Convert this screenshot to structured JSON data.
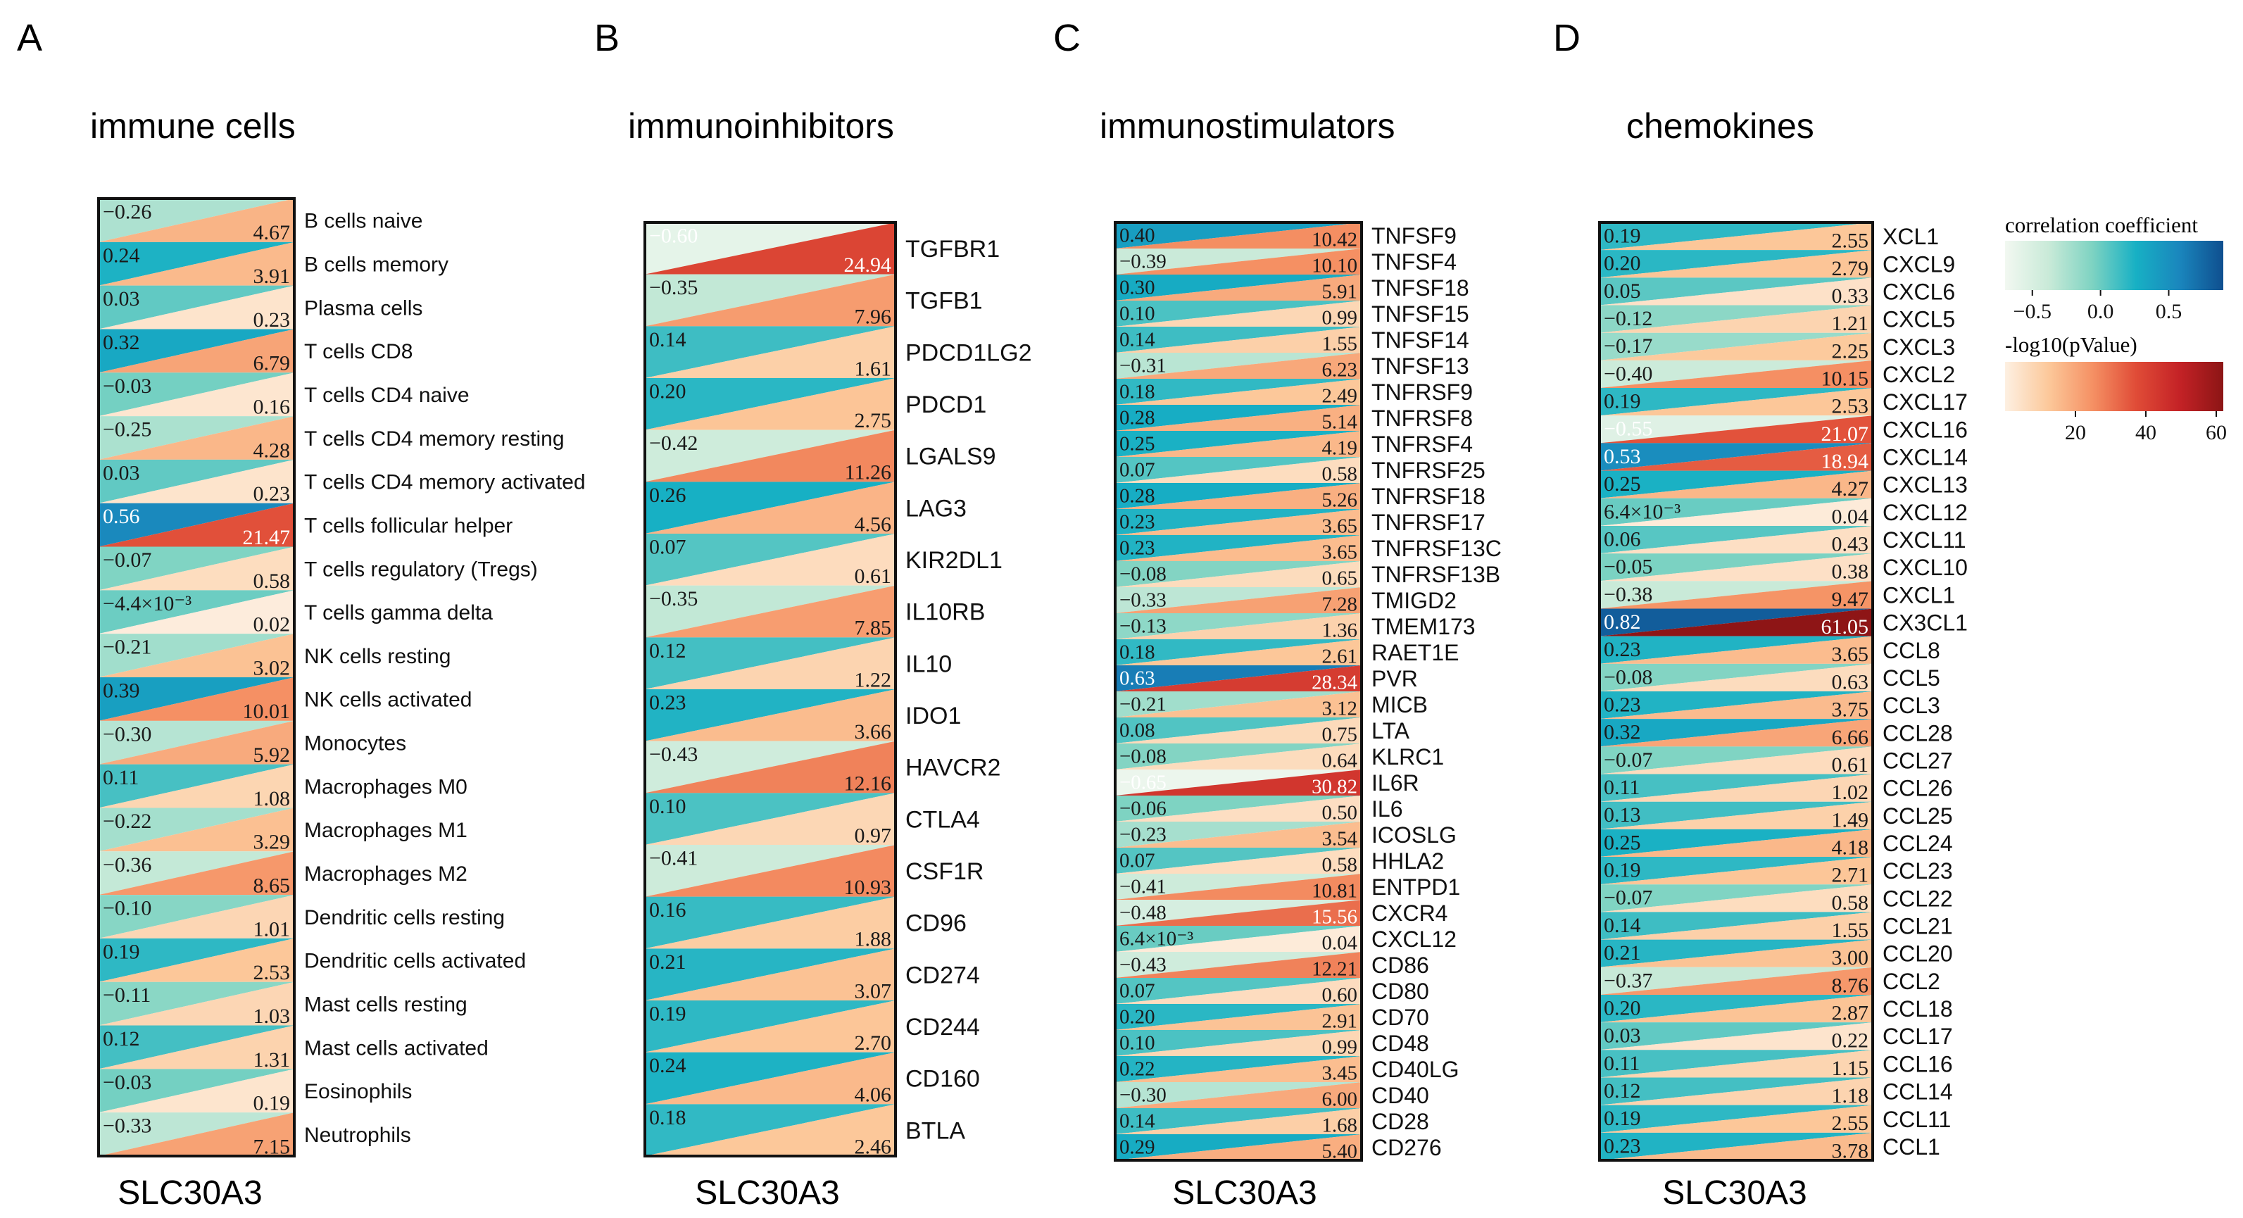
{
  "chart_data": [
    {
      "type": "heatmap",
      "panel_label": "A",
      "title": "immune cells",
      "xlabel": "SLC30A3",
      "rows": [
        {
          "name": "B cells naive",
          "cor": -0.26,
          "cor_label": "−0.26",
          "logp": 4.67,
          "logp_label": "4.67"
        },
        {
          "name": "B cells memory",
          "cor": 0.24,
          "cor_label": "0.24",
          "logp": 3.91,
          "logp_label": "3.91"
        },
        {
          "name": "Plasma cells",
          "cor": 0.03,
          "cor_label": "0.03",
          "logp": 0.23,
          "logp_label": "0.23"
        },
        {
          "name": "T cells CD8",
          "cor": 0.32,
          "cor_label": "0.32",
          "logp": 6.79,
          "logp_label": "6.79"
        },
        {
          "name": "T cells CD4 naive",
          "cor": -0.03,
          "cor_label": "−0.03",
          "logp": 0.16,
          "logp_label": "0.16"
        },
        {
          "name": "T cells CD4 memory resting",
          "cor": -0.25,
          "cor_label": "−0.25",
          "logp": 4.28,
          "logp_label": "4.28"
        },
        {
          "name": "T cells CD4 memory activated",
          "cor": 0.03,
          "cor_label": "0.03",
          "logp": 0.23,
          "logp_label": "0.23"
        },
        {
          "name": "T cells follicular helper",
          "cor": 0.56,
          "cor_label": "0.56",
          "logp": 21.47,
          "logp_label": "21.47"
        },
        {
          "name": "T cells regulatory (Tregs)",
          "cor": -0.07,
          "cor_label": "−0.07",
          "logp": 0.58,
          "logp_label": "0.58"
        },
        {
          "name": "T cells gamma delta",
          "cor": -0.0044,
          "cor_label": "−4.4×10⁻³",
          "logp": 0.02,
          "logp_label": "0.02"
        },
        {
          "name": "NK cells resting",
          "cor": -0.21,
          "cor_label": "−0.21",
          "logp": 3.02,
          "logp_label": "3.02"
        },
        {
          "name": "NK cells activated",
          "cor": 0.39,
          "cor_label": "0.39",
          "logp": 10.01,
          "logp_label": "10.01"
        },
        {
          "name": "Monocytes",
          "cor": -0.3,
          "cor_label": "−0.30",
          "logp": 5.92,
          "logp_label": "5.92"
        },
        {
          "name": "Macrophages M0",
          "cor": 0.11,
          "cor_label": "0.11",
          "logp": 1.08,
          "logp_label": "1.08"
        },
        {
          "name": "Macrophages M1",
          "cor": -0.22,
          "cor_label": "−0.22",
          "logp": 3.29,
          "logp_label": "3.29"
        },
        {
          "name": "Macrophages M2",
          "cor": -0.36,
          "cor_label": "−0.36",
          "logp": 8.65,
          "logp_label": "8.65"
        },
        {
          "name": "Dendritic cells resting",
          "cor": -0.1,
          "cor_label": "−0.10",
          "logp": 1.01,
          "logp_label": "1.01"
        },
        {
          "name": "Dendritic cells activated",
          "cor": 0.19,
          "cor_label": "0.19",
          "logp": 2.53,
          "logp_label": "2.53"
        },
        {
          "name": "Mast cells resting",
          "cor": -0.11,
          "cor_label": "−0.11",
          "logp": 1.03,
          "logp_label": "1.03"
        },
        {
          "name": "Mast cells activated",
          "cor": 0.12,
          "cor_label": "0.12",
          "logp": 1.31,
          "logp_label": "1.31"
        },
        {
          "name": "Eosinophils",
          "cor": -0.03,
          "cor_label": "−0.03",
          "logp": 0.19,
          "logp_label": "0.19"
        },
        {
          "name": "Neutrophils",
          "cor": -0.33,
          "cor_label": "−0.33",
          "logp": 7.15,
          "logp_label": "7.15"
        }
      ]
    },
    {
      "type": "heatmap",
      "panel_label": "B",
      "title": "immunoinhibitors",
      "xlabel": "SLC30A3",
      "rows": [
        {
          "name": "TGFBR1",
          "cor": -0.6,
          "cor_label": "−0.60",
          "logp": 24.94,
          "logp_label": "24.94"
        },
        {
          "name": "TGFB1",
          "cor": -0.35,
          "cor_label": "−0.35",
          "logp": 7.96,
          "logp_label": "7.96"
        },
        {
          "name": "PDCD1LG2",
          "cor": 0.14,
          "cor_label": "0.14",
          "logp": 1.61,
          "logp_label": "1.61"
        },
        {
          "name": "PDCD1",
          "cor": 0.2,
          "cor_label": "0.20",
          "logp": 2.75,
          "logp_label": "2.75"
        },
        {
          "name": "LGALS9",
          "cor": -0.42,
          "cor_label": "−0.42",
          "logp": 11.26,
          "logp_label": "11.26"
        },
        {
          "name": "LAG3",
          "cor": 0.26,
          "cor_label": "0.26",
          "logp": 4.56,
          "logp_label": "4.56"
        },
        {
          "name": "KIR2DL1",
          "cor": 0.07,
          "cor_label": "0.07",
          "logp": 0.61,
          "logp_label": "0.61"
        },
        {
          "name": "IL10RB",
          "cor": -0.35,
          "cor_label": "−0.35",
          "logp": 7.85,
          "logp_label": "7.85"
        },
        {
          "name": "IL10",
          "cor": 0.12,
          "cor_label": "0.12",
          "logp": 1.22,
          "logp_label": "1.22"
        },
        {
          "name": "IDO1",
          "cor": 0.23,
          "cor_label": "0.23",
          "logp": 3.66,
          "logp_label": "3.66"
        },
        {
          "name": "HAVCR2",
          "cor": -0.43,
          "cor_label": "−0.43",
          "logp": 12.16,
          "logp_label": "12.16"
        },
        {
          "name": "CTLA4",
          "cor": 0.1,
          "cor_label": "0.10",
          "logp": 0.97,
          "logp_label": "0.97"
        },
        {
          "name": "CSF1R",
          "cor": -0.41,
          "cor_label": "−0.41",
          "logp": 10.93,
          "logp_label": "10.93"
        },
        {
          "name": "CD96",
          "cor": 0.16,
          "cor_label": "0.16",
          "logp": 1.88,
          "logp_label": "1.88"
        },
        {
          "name": "CD274",
          "cor": 0.21,
          "cor_label": "0.21",
          "logp": 3.07,
          "logp_label": "3.07"
        },
        {
          "name": "CD244",
          "cor": 0.19,
          "cor_label": "0.19",
          "logp": 2.7,
          "logp_label": "2.70"
        },
        {
          "name": "CD160",
          "cor": 0.24,
          "cor_label": "0.24",
          "logp": 4.06,
          "logp_label": "4.06"
        },
        {
          "name": "BTLA",
          "cor": 0.18,
          "cor_label": "0.18",
          "logp": 2.46,
          "logp_label": "2.46"
        }
      ]
    },
    {
      "type": "heatmap",
      "panel_label": "C",
      "title": "immunostimulators",
      "xlabel": "SLC30A3",
      "rows": [
        {
          "name": "TNFSF9",
          "cor": 0.4,
          "cor_label": "0.40",
          "logp": 10.42,
          "logp_label": "10.42"
        },
        {
          "name": "TNFSF4",
          "cor": -0.39,
          "cor_label": "−0.39",
          "logp": 10.1,
          "logp_label": "10.10"
        },
        {
          "name": "TNFSF18",
          "cor": 0.3,
          "cor_label": "0.30",
          "logp": 5.91,
          "logp_label": "5.91"
        },
        {
          "name": "TNFSF15",
          "cor": 0.1,
          "cor_label": "0.10",
          "logp": 0.99,
          "logp_label": "0.99"
        },
        {
          "name": "TNFSF14",
          "cor": 0.14,
          "cor_label": "0.14",
          "logp": 1.55,
          "logp_label": "1.55"
        },
        {
          "name": "TNFSF13",
          "cor": -0.31,
          "cor_label": "−0.31",
          "logp": 6.23,
          "logp_label": "6.23"
        },
        {
          "name": "TNFRSF9",
          "cor": 0.18,
          "cor_label": "0.18",
          "logp": 2.49,
          "logp_label": "2.49"
        },
        {
          "name": "TNFRSF8",
          "cor": 0.28,
          "cor_label": "0.28",
          "logp": 5.14,
          "logp_label": "5.14"
        },
        {
          "name": "TNFRSF4",
          "cor": 0.25,
          "cor_label": "0.25",
          "logp": 4.19,
          "logp_label": "4.19"
        },
        {
          "name": "TNFRSF25",
          "cor": 0.07,
          "cor_label": "0.07",
          "logp": 0.58,
          "logp_label": "0.58"
        },
        {
          "name": "TNFRSF18",
          "cor": 0.28,
          "cor_label": "0.28",
          "logp": 5.26,
          "logp_label": "5.26"
        },
        {
          "name": "TNFRSF17",
          "cor": 0.23,
          "cor_label": "0.23",
          "logp": 3.65,
          "logp_label": "3.65"
        },
        {
          "name": "TNFRSF13C",
          "cor": 0.23,
          "cor_label": "0.23",
          "logp": 3.65,
          "logp_label": "3.65"
        },
        {
          "name": "TNFRSF13B",
          "cor": -0.08,
          "cor_label": "−0.08",
          "logp": 0.65,
          "logp_label": "0.65"
        },
        {
          "name": "TMIGD2",
          "cor": -0.33,
          "cor_label": "−0.33",
          "logp": 7.28,
          "logp_label": "7.28"
        },
        {
          "name": "TMEM173",
          "cor": -0.13,
          "cor_label": "−0.13",
          "logp": 1.36,
          "logp_label": "1.36"
        },
        {
          "name": "RAET1E",
          "cor": 0.18,
          "cor_label": "0.18",
          "logp": 2.61,
          "logp_label": "2.61"
        },
        {
          "name": "PVR",
          "cor": 0.63,
          "cor_label": "0.63",
          "logp": 28.34,
          "logp_label": "28.34"
        },
        {
          "name": "MICB",
          "cor": -0.21,
          "cor_label": "−0.21",
          "logp": 3.12,
          "logp_label": "3.12"
        },
        {
          "name": "LTA",
          "cor": 0.08,
          "cor_label": "0.08",
          "logp": 0.75,
          "logp_label": "0.75"
        },
        {
          "name": "KLRC1",
          "cor": -0.08,
          "cor_label": "−0.08",
          "logp": 0.64,
          "logp_label": "0.64"
        },
        {
          "name": "IL6R",
          "cor": -0.65,
          "cor_label": "−0.65",
          "logp": 30.82,
          "logp_label": "30.82"
        },
        {
          "name": "IL6",
          "cor": -0.06,
          "cor_label": "−0.06",
          "logp": 0.5,
          "logp_label": "0.50"
        },
        {
          "name": "ICOSLG",
          "cor": -0.23,
          "cor_label": "−0.23",
          "logp": 3.54,
          "logp_label": "3.54"
        },
        {
          "name": "HHLA2",
          "cor": 0.07,
          "cor_label": "0.07",
          "logp": 0.58,
          "logp_label": "0.58"
        },
        {
          "name": "ENTPD1",
          "cor": -0.41,
          "cor_label": "−0.41",
          "logp": 10.81,
          "logp_label": "10.81"
        },
        {
          "name": "CXCR4",
          "cor": -0.48,
          "cor_label": "−0.48",
          "logp": 15.56,
          "logp_label": "15.56"
        },
        {
          "name": "CXCL12",
          "cor": 0.0064,
          "cor_label": "6.4×10⁻³",
          "logp": 0.04,
          "logp_label": "0.04"
        },
        {
          "name": "CD86",
          "cor": -0.43,
          "cor_label": "−0.43",
          "logp": 12.21,
          "logp_label": "12.21"
        },
        {
          "name": "CD80",
          "cor": 0.07,
          "cor_label": "0.07",
          "logp": 0.6,
          "logp_label": "0.60"
        },
        {
          "name": "CD70",
          "cor": 0.2,
          "cor_label": "0.20",
          "logp": 2.91,
          "logp_label": "2.91"
        },
        {
          "name": "CD48",
          "cor": 0.1,
          "cor_label": "0.10",
          "logp": 0.99,
          "logp_label": "0.99"
        },
        {
          "name": "CD40LG",
          "cor": 0.22,
          "cor_label": "0.22",
          "logp": 3.45,
          "logp_label": "3.45"
        },
        {
          "name": "CD40",
          "cor": -0.3,
          "cor_label": "−0.30",
          "logp": 6.0,
          "logp_label": "6.00"
        },
        {
          "name": "CD28",
          "cor": 0.14,
          "cor_label": "0.14",
          "logp": 1.68,
          "logp_label": "1.68"
        },
        {
          "name": "CD276",
          "cor": 0.29,
          "cor_label": "0.29",
          "logp": 5.4,
          "logp_label": "5.40"
        }
      ]
    },
    {
      "type": "heatmap",
      "panel_label": "D",
      "title": "chemokines",
      "xlabel": "SLC30A3",
      "rows": [
        {
          "name": "XCL1",
          "cor": 0.19,
          "cor_label": "0.19",
          "logp": 2.55,
          "logp_label": "2.55"
        },
        {
          "name": "CXCL9",
          "cor": 0.2,
          "cor_label": "0.20",
          "logp": 2.79,
          "logp_label": "2.79"
        },
        {
          "name": "CXCL6",
          "cor": 0.05,
          "cor_label": "0.05",
          "logp": 0.33,
          "logp_label": "0.33"
        },
        {
          "name": "CXCL5",
          "cor": -0.12,
          "cor_label": "−0.12",
          "logp": 1.21,
          "logp_label": "1.21"
        },
        {
          "name": "CXCL3",
          "cor": -0.17,
          "cor_label": "−0.17",
          "logp": 2.25,
          "logp_label": "2.25"
        },
        {
          "name": "CXCL2",
          "cor": -0.4,
          "cor_label": "−0.40",
          "logp": 10.15,
          "logp_label": "10.15"
        },
        {
          "name": "CXCL17",
          "cor": 0.19,
          "cor_label": "0.19",
          "logp": 2.53,
          "logp_label": "2.53"
        },
        {
          "name": "CXCL16",
          "cor": -0.55,
          "cor_label": "−0.55",
          "logp": 21.07,
          "logp_label": "21.07"
        },
        {
          "name": "CXCL14",
          "cor": 0.53,
          "cor_label": "0.53",
          "logp": 18.94,
          "logp_label": "18.94"
        },
        {
          "name": "CXCL13",
          "cor": 0.25,
          "cor_label": "0.25",
          "logp": 4.27,
          "logp_label": "4.27"
        },
        {
          "name": "CXCL12",
          "cor": 0.0064,
          "cor_label": "6.4×10⁻³",
          "logp": 0.04,
          "logp_label": "0.04"
        },
        {
          "name": "CXCL11",
          "cor": 0.06,
          "cor_label": "0.06",
          "logp": 0.43,
          "logp_label": "0.43"
        },
        {
          "name": "CXCL10",
          "cor": -0.05,
          "cor_label": "−0.05",
          "logp": 0.38,
          "logp_label": "0.38"
        },
        {
          "name": "CXCL1",
          "cor": -0.38,
          "cor_label": "−0.38",
          "logp": 9.47,
          "logp_label": "9.47"
        },
        {
          "name": "CX3CL1",
          "cor": 0.82,
          "cor_label": "0.82",
          "logp": 61.05,
          "logp_label": "61.05"
        },
        {
          "name": "CCL8",
          "cor": 0.23,
          "cor_label": "0.23",
          "logp": 3.65,
          "logp_label": "3.65"
        },
        {
          "name": "CCL5",
          "cor": -0.08,
          "cor_label": "−0.08",
          "logp": 0.63,
          "logp_label": "0.63"
        },
        {
          "name": "CCL3",
          "cor": 0.23,
          "cor_label": "0.23",
          "logp": 3.75,
          "logp_label": "3.75"
        },
        {
          "name": "CCL28",
          "cor": 0.32,
          "cor_label": "0.32",
          "logp": 6.66,
          "logp_label": "6.66"
        },
        {
          "name": "CCL27",
          "cor": -0.07,
          "cor_label": "−0.07",
          "logp": 0.61,
          "logp_label": "0.61"
        },
        {
          "name": "CCL26",
          "cor": 0.11,
          "cor_label": "0.11",
          "logp": 1.02,
          "logp_label": "1.02"
        },
        {
          "name": "CCL25",
          "cor": 0.13,
          "cor_label": "0.13",
          "logp": 1.49,
          "logp_label": "1.49"
        },
        {
          "name": "CCL24",
          "cor": 0.25,
          "cor_label": "0.25",
          "logp": 4.18,
          "logp_label": "4.18"
        },
        {
          "name": "CCL23",
          "cor": 0.19,
          "cor_label": "0.19",
          "logp": 2.71,
          "logp_label": "2.71"
        },
        {
          "name": "CCL22",
          "cor": -0.07,
          "cor_label": "−0.07",
          "logp": 0.58,
          "logp_label": "0.58"
        },
        {
          "name": "CCL21",
          "cor": 0.14,
          "cor_label": "0.14",
          "logp": 1.55,
          "logp_label": "1.55"
        },
        {
          "name": "CCL20",
          "cor": 0.21,
          "cor_label": "0.21",
          "logp": 3.0,
          "logp_label": "3.00"
        },
        {
          "name": "CCL2",
          "cor": -0.37,
          "cor_label": "−0.37",
          "logp": 8.76,
          "logp_label": "8.76"
        },
        {
          "name": "CCL18",
          "cor": 0.2,
          "cor_label": "0.20",
          "logp": 2.87,
          "logp_label": "2.87"
        },
        {
          "name": "CCL17",
          "cor": 0.03,
          "cor_label": "0.03",
          "logp": 0.22,
          "logp_label": "0.22"
        },
        {
          "name": "CCL16",
          "cor": 0.11,
          "cor_label": "0.11",
          "logp": 1.15,
          "logp_label": "1.15"
        },
        {
          "name": "CCL14",
          "cor": 0.12,
          "cor_label": "0.12",
          "logp": 1.18,
          "logp_label": "1.18"
        },
        {
          "name": "CCL11",
          "cor": 0.19,
          "cor_label": "0.19",
          "logp": 2.55,
          "logp_label": "2.55"
        },
        {
          "name": "CCL1",
          "cor": 0.23,
          "cor_label": "0.23",
          "logp": 3.78,
          "logp_label": "3.78"
        }
      ]
    }
  ],
  "legend": {
    "correlation": {
      "title": "correlation coefficient",
      "ticks": [
        {
          "value": -0.5,
          "label": "−0.5"
        },
        {
          "value": 0.0,
          "label": "0.0"
        },
        {
          "value": 0.5,
          "label": "0.5"
        }
      ],
      "range": [
        -0.7,
        0.9
      ],
      "colors": [
        "#f2f8f1",
        "#c9ead8",
        "#7ed3c2",
        "#17b0c4",
        "#1a86bd",
        "#0f4f8f"
      ]
    },
    "pvalue": {
      "title": "-log10(pValue)",
      "ticks": [
        {
          "value": 20,
          "label": "20"
        },
        {
          "value": 40,
          "label": "40"
        },
        {
          "value": 60,
          "label": "60"
        }
      ],
      "range": [
        0,
        62
      ],
      "colors": [
        "#fdf0e2",
        "#fcc89a",
        "#f59164",
        "#e04c37",
        "#c42226",
        "#8c1515"
      ]
    }
  }
}
